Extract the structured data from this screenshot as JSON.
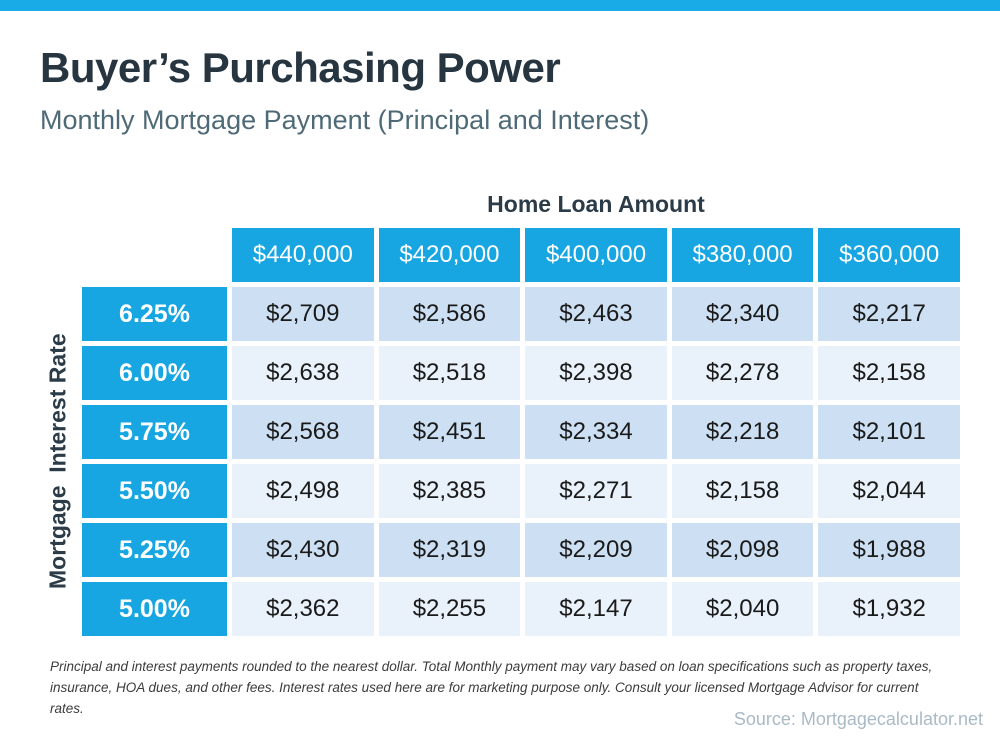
{
  "page": {
    "title": "Buyer’s Purchasing Power",
    "subtitle": "Monthly Mortgage Payment (Principal and Interest)",
    "footnote": "Principal and interest payments rounded to the nearest dollar. Total Monthly payment may vary based on loan specifications such as property taxes, insurance, HOA dues, and other fees. Interest rates used here are for marketing purpose only. Consult your licensed Mortgage Advisor for current rates.",
    "source": "Source: Mortgagecalculator.net"
  },
  "colors": {
    "accent_cyan": "#18a6e2",
    "top_bar": "#18abe8",
    "row_odd": "#cde0f3",
    "row_even": "#e9f1fa",
    "title_dark": "#263540",
    "subtitle_gray": "#4e6a77",
    "source_gray": "#a9bac6"
  },
  "chart_data": {
    "type": "table",
    "title": "Buyer’s Purchasing Power",
    "subtitle": "Monthly Mortgage Payment (Principal and Interest)",
    "col_group_label": "Home Loan Amount",
    "row_group_label": "Mortgage  Interest Rate",
    "columns": [
      "$440,000",
      "$420,000",
      "$400,000",
      "$380,000",
      "$360,000"
    ],
    "rows": [
      {
        "rate": "6.25%",
        "values": [
          "$2,709",
          "$2,586",
          "$2,463",
          "$2,340",
          "$2,217"
        ]
      },
      {
        "rate": "6.00%",
        "values": [
          "$2,638",
          "$2,518",
          "$2,398",
          "$2,278",
          "$2,158"
        ]
      },
      {
        "rate": "5.75%",
        "values": [
          "$2,568",
          "$2,451",
          "$2,334",
          "$2,218",
          "$2,101"
        ]
      },
      {
        "rate": "5.50%",
        "values": [
          "$2,498",
          "$2,385",
          "$2,271",
          "$2,158",
          "$2,044"
        ]
      },
      {
        "rate": "5.25%",
        "values": [
          "$2,430",
          "$2,319",
          "$2,209",
          "$2,098",
          "$1,988"
        ]
      },
      {
        "rate": "5.00%",
        "values": [
          "$2,362",
          "$2,255",
          "$2,147",
          "$2,040",
          "$1,932"
        ]
      }
    ]
  }
}
